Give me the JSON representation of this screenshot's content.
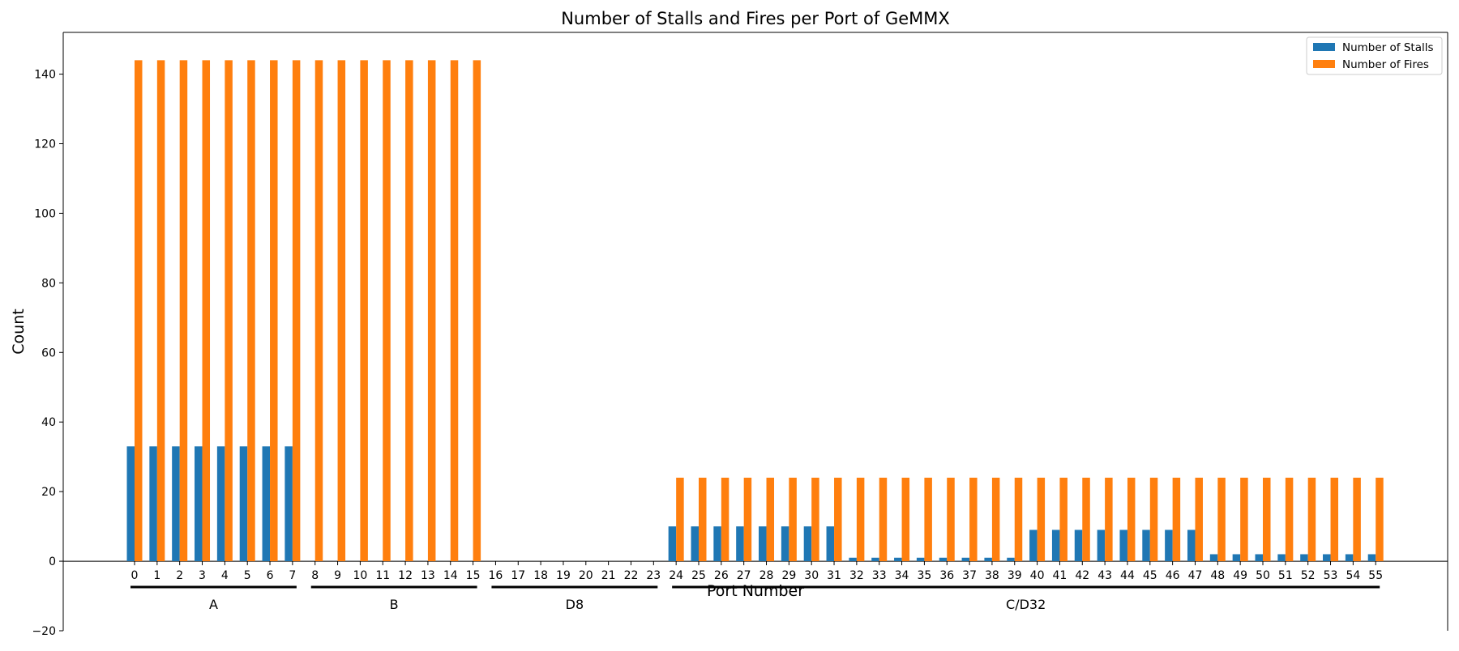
{
  "chart_data": {
    "type": "bar",
    "title": "Number of Stalls and Fires per Port of GeMMX",
    "xlabel": "Port Number",
    "ylabel": "Count",
    "ylim": [
      -20,
      152
    ],
    "yticks": [
      -20,
      0,
      20,
      40,
      60,
      80,
      100,
      120,
      140
    ],
    "grid": false,
    "legend_position": "upper right",
    "categories": [
      "0",
      "1",
      "2",
      "3",
      "4",
      "5",
      "6",
      "7",
      "8",
      "9",
      "10",
      "11",
      "12",
      "13",
      "14",
      "15",
      "16",
      "17",
      "18",
      "19",
      "20",
      "21",
      "22",
      "23",
      "24",
      "25",
      "26",
      "27",
      "28",
      "29",
      "30",
      "31",
      "32",
      "33",
      "34",
      "35",
      "36",
      "37",
      "38",
      "39",
      "40",
      "41",
      "42",
      "43",
      "44",
      "45",
      "46",
      "47",
      "48",
      "49",
      "50",
      "51",
      "52",
      "53",
      "54",
      "55"
    ],
    "series": [
      {
        "name": "Number of Stalls",
        "color": "#1f77b4",
        "values": [
          33,
          33,
          33,
          33,
          33,
          33,
          33,
          33,
          0,
          0,
          0,
          0,
          0,
          0,
          0,
          0,
          0,
          0,
          0,
          0,
          0,
          0,
          0,
          0,
          10,
          10,
          10,
          10,
          10,
          10,
          10,
          10,
          1,
          1,
          1,
          1,
          1,
          1,
          1,
          1,
          9,
          9,
          9,
          9,
          9,
          9,
          9,
          9,
          2,
          2,
          2,
          2,
          2,
          2,
          2,
          2
        ]
      },
      {
        "name": "Number of Fires",
        "color": "#ff7f0e",
        "values": [
          144,
          144,
          144,
          144,
          144,
          144,
          144,
          144,
          144,
          144,
          144,
          144,
          144,
          144,
          144,
          144,
          0,
          0,
          0,
          0,
          0,
          0,
          0,
          0,
          24,
          24,
          24,
          24,
          24,
          24,
          24,
          24,
          24,
          24,
          24,
          24,
          24,
          24,
          24,
          24,
          24,
          24,
          24,
          24,
          24,
          24,
          24,
          24,
          24,
          24,
          24,
          24,
          24,
          24,
          24,
          24
        ]
      }
    ],
    "groups": [
      {
        "label": "A",
        "start": 0,
        "end": 7
      },
      {
        "label": "B",
        "start": 8,
        "end": 15
      },
      {
        "label": "D8",
        "start": 16,
        "end": 23
      },
      {
        "label": "C/D32",
        "start": 24,
        "end": 55
      }
    ]
  }
}
